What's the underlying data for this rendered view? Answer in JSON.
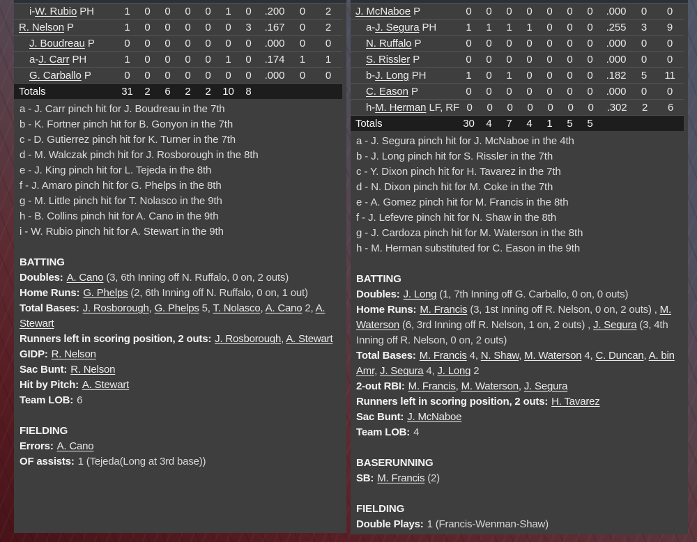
{
  "colors": {
    "panel_bg": "#3e3e3e",
    "totals_row_bg": "#1d1d1d",
    "row_separator": "#555559",
    "table_top_strip": "#2b2f38",
    "text": "#e8e8e8",
    "background_maroon": "#571d23",
    "background_slate": "#4f5667"
  },
  "panels": [
    {
      "side": "left",
      "table": {
        "rows": [
          {
            "prefix": "i-",
            "name": "W. Rubio",
            "suffix": " PH",
            "indent": true,
            "stats": [
              "1",
              "0",
              "0",
              "0",
              "0",
              "1",
              "0",
              ".200",
              "0",
              "2"
            ]
          },
          {
            "prefix": "",
            "name": "R. Nelson",
            "suffix": " P",
            "indent": false,
            "stats": [
              "1",
              "0",
              "0",
              "0",
              "0",
              "0",
              "3",
              ".167",
              "0",
              "2"
            ]
          },
          {
            "prefix": "",
            "name": "J. Boudreau",
            "suffix": " P",
            "indent": true,
            "stats": [
              "0",
              "0",
              "0",
              "0",
              "0",
              "0",
              "0",
              ".000",
              "0",
              "0"
            ]
          },
          {
            "prefix": "a-",
            "name": "J. Carr",
            "suffix": " PH",
            "indent": true,
            "stats": [
              "1",
              "0",
              "0",
              "0",
              "0",
              "1",
              "0",
              ".174",
              "1",
              "1"
            ]
          },
          {
            "prefix": "",
            "name": "G. Carballo",
            "suffix": " P",
            "indent": true,
            "stats": [
              "0",
              "0",
              "0",
              "0",
              "0",
              "0",
              "0",
              ".000",
              "0",
              "0"
            ]
          }
        ],
        "totals_label": "Totals",
        "totals": [
          "31",
          "2",
          "6",
          "2",
          "2",
          "10",
          "8",
          "",
          "",
          ""
        ]
      },
      "notes": [
        "a - J. Carr pinch hit for J. Boudreau in the 7th",
        "b - K. Fortner pinch hit for B. Gonyon in the 7th",
        "c - D. Gutierrez pinch hit for K. Turner in the 7th",
        "d - M. Walczak pinch hit for J. Rosborough in the 8th",
        "e - J. King pinch hit for L. Tejeda in the 8th",
        "f - J. Amaro pinch hit for G. Phelps in the 8th",
        "g - M. Little pinch hit for T. Nolasco in the 9th",
        "h - B. Collins pinch hit for A. Cano in the 9th",
        "i - W. Rubio pinch hit for A. Stewart in the 9th"
      ],
      "sections": [
        {
          "title": "BATTING",
          "items": [
            {
              "label": "Doubles:",
              "parts": [
                {
                  "t": "A. Cano",
                  "link": true
                },
                {
                  "t": " (3, 6th Inning off N. Ruffalo, 0 on, 2 outs)"
                }
              ]
            },
            {
              "label": "Home Runs:",
              "parts": [
                {
                  "t": "G. Phelps",
                  "link": true
                },
                {
                  "t": " (2, 6th Inning off N. Ruffalo, 0 on, 1 out)"
                }
              ]
            },
            {
              "label": "Total Bases:",
              "parts": [
                {
                  "t": "J. Rosborough",
                  "link": true
                },
                {
                  "t": ", "
                },
                {
                  "t": "G. Phelps",
                  "link": true
                },
                {
                  "t": " 5, "
                },
                {
                  "t": "T. Nolasco",
                  "link": true
                },
                {
                  "t": ", "
                },
                {
                  "t": "A. Cano",
                  "link": true
                },
                {
                  "t": " 2, "
                },
                {
                  "t": "A. Stewart",
                  "link": true
                }
              ]
            },
            {
              "label": "Runners left in scoring position, 2 outs:",
              "parts": [
                {
                  "t": "J. Rosborough",
                  "link": true
                },
                {
                  "t": ", "
                },
                {
                  "t": "A. Stewart",
                  "link": true
                }
              ]
            },
            {
              "label": "GIDP:",
              "parts": [
                {
                  "t": "R. Nelson",
                  "link": true
                }
              ]
            },
            {
              "label": "Sac Bunt:",
              "parts": [
                {
                  "t": "R. Nelson",
                  "link": true
                }
              ]
            },
            {
              "label": "Hit by Pitch:",
              "parts": [
                {
                  "t": "A. Stewart",
                  "link": true
                }
              ]
            },
            {
              "label": "Team LOB:",
              "parts": [
                {
                  "t": "6"
                }
              ]
            }
          ]
        },
        {
          "title": "FIELDING",
          "items": [
            {
              "label": "Errors:",
              "parts": [
                {
                  "t": "A. Cano",
                  "link": true
                }
              ]
            },
            {
              "label": "OF assists:",
              "parts": [
                {
                  "t": "1 (Tejeda(Long at 3rd base))"
                }
              ]
            }
          ]
        }
      ]
    },
    {
      "side": "right",
      "table": {
        "rows": [
          {
            "prefix": "",
            "name": "J. McNaboe",
            "suffix": " P",
            "indent": false,
            "stats": [
              "0",
              "0",
              "0",
              "0",
              "0",
              "0",
              "0",
              ".000",
              "0",
              "0"
            ]
          },
          {
            "prefix": "a-",
            "name": "J. Segura",
            "suffix": " PH",
            "indent": true,
            "stats": [
              "1",
              "1",
              "1",
              "1",
              "0",
              "0",
              "0",
              ".255",
              "3",
              "9"
            ]
          },
          {
            "prefix": "",
            "name": "N. Ruffalo",
            "suffix": " P",
            "indent": true,
            "stats": [
              "0",
              "0",
              "0",
              "0",
              "0",
              "0",
              "0",
              ".000",
              "0",
              "0"
            ]
          },
          {
            "prefix": "",
            "name": "S. Rissler",
            "suffix": " P",
            "indent": true,
            "stats": [
              "0",
              "0",
              "0",
              "0",
              "0",
              "0",
              "0",
              ".000",
              "0",
              "0"
            ]
          },
          {
            "prefix": "b-",
            "name": "J. Long",
            "suffix": " PH",
            "indent": true,
            "stats": [
              "1",
              "0",
              "1",
              "0",
              "0",
              "0",
              "0",
              ".182",
              "5",
              "11"
            ]
          },
          {
            "prefix": "",
            "name": "C. Eason",
            "suffix": " P",
            "indent": true,
            "stats": [
              "0",
              "0",
              "0",
              "0",
              "0",
              "0",
              "0",
              ".000",
              "0",
              "0"
            ]
          },
          {
            "prefix": "h-",
            "name": "M. Herman",
            "suffix": " LF, RF",
            "indent": true,
            "stats": [
              "0",
              "0",
              "0",
              "0",
              "0",
              "0",
              "0",
              ".302",
              "2",
              "6"
            ]
          }
        ],
        "totals_label": "Totals",
        "totals": [
          "30",
          "4",
          "7",
          "4",
          "1",
          "5",
          "5",
          "",
          "",
          ""
        ]
      },
      "notes": [
        "a - J. Segura pinch hit for J. McNaboe in the 4th",
        "b - J. Long pinch hit for S. Rissler in the 7th",
        "c - Y. Dixon pinch hit for H. Tavarez in the 7th",
        "d - N. Dixon pinch hit for M. Coke in the 7th",
        "e - A. Gomez pinch hit for M. Francis in the 8th",
        "f - J. Lefevre pinch hit for N. Shaw in the 8th",
        "g - J. Cardoza pinch hit for M. Waterson in the 8th",
        "h - M. Herman substituted for C. Eason in the 9th"
      ],
      "sections": [
        {
          "title": "BATTING",
          "items": [
            {
              "label": "Doubles:",
              "parts": [
                {
                  "t": "J. Long",
                  "link": true
                },
                {
                  "t": " (1, 7th Inning off G. Carballo, 0 on, 0 outs)"
                }
              ]
            },
            {
              "label": "Home Runs:",
              "parts": [
                {
                  "t": "M. Francis",
                  "link": true
                },
                {
                  "t": " (3, 1st Inning off R. Nelson, 0 on, 2 outs) , "
                },
                {
                  "t": "M. Waterson",
                  "link": true
                },
                {
                  "t": " (6, 3rd Inning off R. Nelson, 1 on, 2 outs) , "
                },
                {
                  "t": "J. Segura",
                  "link": true
                },
                {
                  "t": " (3, 4th Inning off R. Nelson, 0 on, 2 outs)"
                }
              ]
            },
            {
              "label": "Total Bases:",
              "parts": [
                {
                  "t": "M. Francis",
                  "link": true
                },
                {
                  "t": " 4, "
                },
                {
                  "t": "N. Shaw",
                  "link": true
                },
                {
                  "t": ", "
                },
                {
                  "t": "M. Waterson",
                  "link": true
                },
                {
                  "t": " 4, "
                },
                {
                  "t": "C. Duncan",
                  "link": true
                },
                {
                  "t": ", "
                },
                {
                  "t": "A. bin Amr",
                  "link": true
                },
                {
                  "t": ", "
                },
                {
                  "t": "J. Segura",
                  "link": true
                },
                {
                  "t": " 4, "
                },
                {
                  "t": "J. Long",
                  "link": true
                },
                {
                  "t": " 2"
                }
              ]
            },
            {
              "label": "2-out RBI:",
              "parts": [
                {
                  "t": "M. Francis",
                  "link": true
                },
                {
                  "t": ", "
                },
                {
                  "t": "M. Waterson",
                  "link": true
                },
                {
                  "t": ", "
                },
                {
                  "t": "J. Segura",
                  "link": true
                }
              ]
            },
            {
              "label": "Runners left in scoring position, 2 outs:",
              "parts": [
                {
                  "t": "H. Tavarez",
                  "link": true
                }
              ]
            },
            {
              "label": "Sac Bunt:",
              "parts": [
                {
                  "t": "J. McNaboe",
                  "link": true
                }
              ]
            },
            {
              "label": "Team LOB:",
              "parts": [
                {
                  "t": "4"
                }
              ]
            }
          ]
        },
        {
          "title": "BASERUNNING",
          "items": [
            {
              "label": "SB:",
              "parts": [
                {
                  "t": "M. Francis",
                  "link": true
                },
                {
                  "t": " (2)"
                }
              ]
            }
          ]
        },
        {
          "title": "FIELDING",
          "items": [
            {
              "label": "Double Plays:",
              "parts": [
                {
                  "t": "1 (Francis-Wenman-Shaw)"
                }
              ]
            }
          ]
        }
      ]
    }
  ]
}
